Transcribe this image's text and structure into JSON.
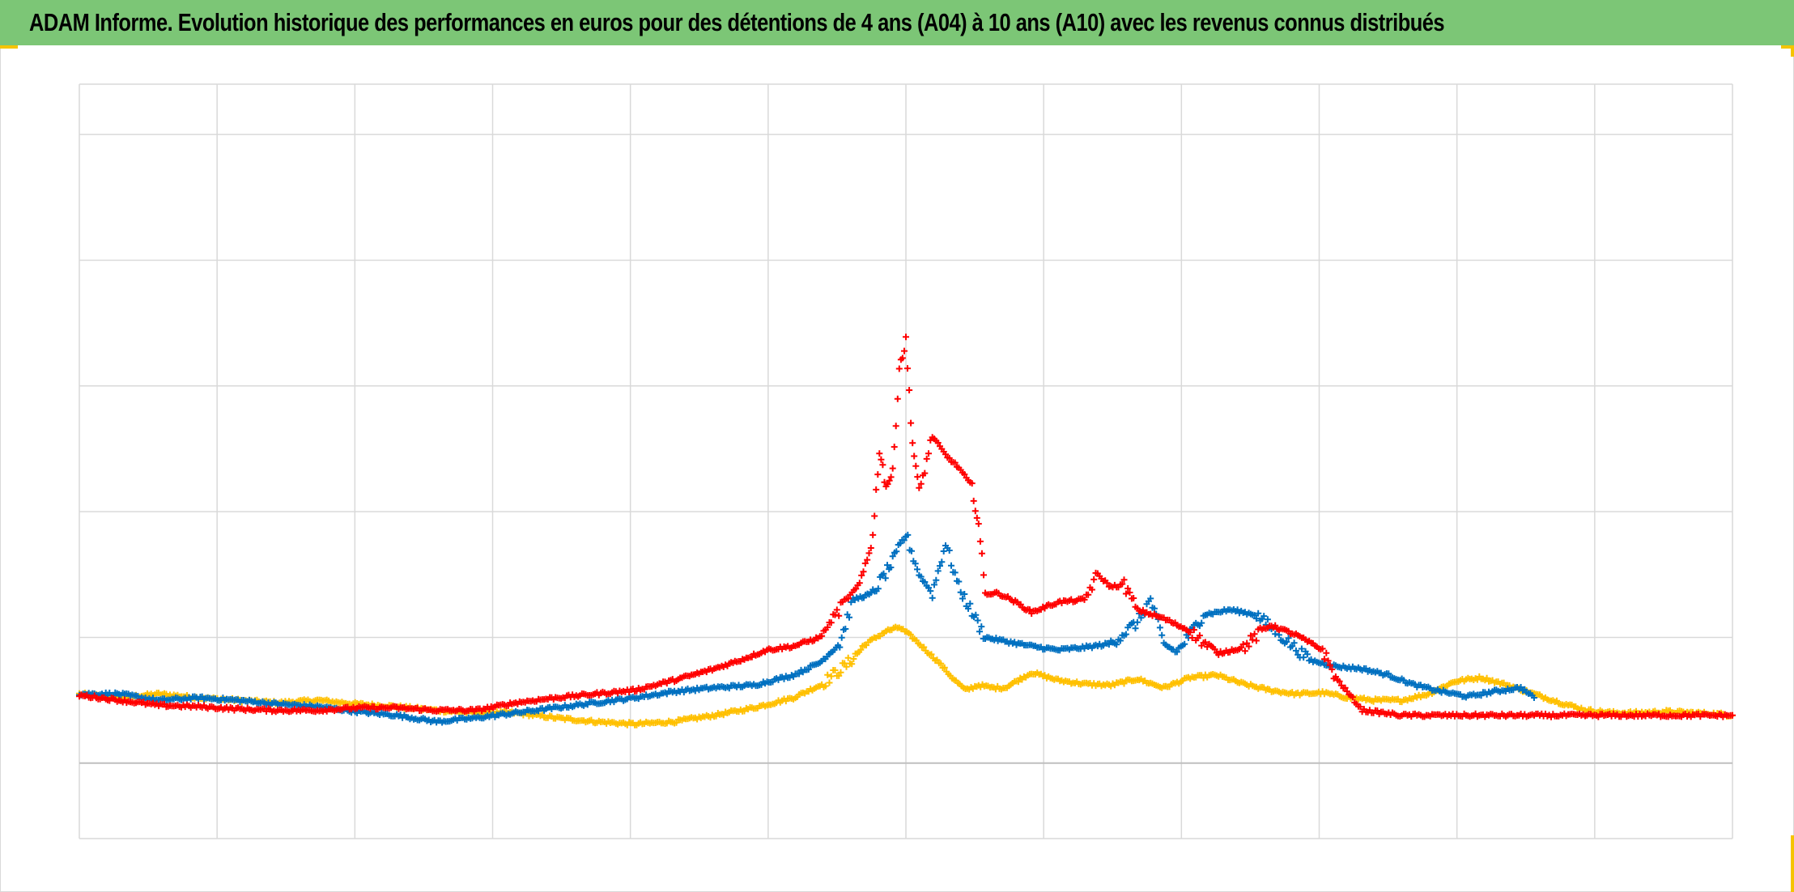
{
  "title": "ADAM Informe. Evolution historique des performances en euros pour des détentions de 4 ans (A04) à 10 ans (A10) avec les revenus connus distribués",
  "colors": {
    "header_bg": "#7cc676",
    "accent_corner": "#f5c400",
    "grid": "#d9d9d9",
    "axis": "#bfbfbf"
  },
  "chart_data": {
    "type": "scatter",
    "marker": "plus",
    "title": "ADAM Informe. Evolution historique des performances en euros pour des détentions de 4 ans (A04) à 10 ans (A10) avec les revenus connus distribués",
    "xlabel": "",
    "ylabel": "",
    "tick_labels_visible": false,
    "grid": true,
    "legend": "none",
    "xlim": [
      0,
      12.5
    ],
    "ylim": [
      -0.6,
      5.4
    ],
    "x_gridlines": 13,
    "y_gridlines": [
      5,
      4,
      3,
      2,
      1,
      0
    ],
    "zero_line": 0,
    "series": [
      {
        "color": "#ffc000",
        "points": [
          [
            0.0,
            0.55
          ],
          [
            0.3,
            0.52
          ],
          [
            0.6,
            0.55
          ],
          [
            0.9,
            0.52
          ],
          [
            1.2,
            0.5
          ],
          [
            1.5,
            0.48
          ],
          [
            1.8,
            0.5
          ],
          [
            2.1,
            0.47
          ],
          [
            2.4,
            0.45
          ],
          [
            2.7,
            0.42
          ],
          [
            3.0,
            0.4
          ],
          [
            3.3,
            0.4
          ],
          [
            3.6,
            0.36
          ],
          [
            3.9,
            0.33
          ],
          [
            4.2,
            0.31
          ],
          [
            4.5,
            0.33
          ],
          [
            4.8,
            0.38
          ],
          [
            5.1,
            0.44
          ],
          [
            5.4,
            0.52
          ],
          [
            5.6,
            0.62
          ],
          [
            5.8,
            0.78
          ],
          [
            5.95,
            0.95
          ],
          [
            6.1,
            1.05
          ],
          [
            6.2,
            1.08
          ],
          [
            6.3,
            1.0
          ],
          [
            6.4,
            0.9
          ],
          [
            6.5,
            0.8
          ],
          [
            6.6,
            0.68
          ],
          [
            6.7,
            0.58
          ],
          [
            6.8,
            0.62
          ],
          [
            6.9,
            0.6
          ],
          [
            7.0,
            0.6
          ],
          [
            7.2,
            0.72
          ],
          [
            7.4,
            0.66
          ],
          [
            7.6,
            0.63
          ],
          [
            7.8,
            0.62
          ],
          [
            8.0,
            0.67
          ],
          [
            8.2,
            0.6
          ],
          [
            8.4,
            0.68
          ],
          [
            8.6,
            0.7
          ],
          [
            8.8,
            0.63
          ],
          [
            9.0,
            0.58
          ],
          [
            9.2,
            0.55
          ],
          [
            9.4,
            0.56
          ],
          [
            9.6,
            0.52
          ],
          [
            9.8,
            0.5
          ],
          [
            10.0,
            0.5
          ],
          [
            10.2,
            0.55
          ],
          [
            10.4,
            0.65
          ],
          [
            10.6,
            0.68
          ],
          [
            10.8,
            0.62
          ],
          [
            11.0,
            0.55
          ],
          [
            11.2,
            0.48
          ],
          [
            11.4,
            0.42
          ],
          [
            11.6,
            0.4
          ],
          [
            11.8,
            0.4
          ],
          [
            12.0,
            0.41
          ],
          [
            12.2,
            0.4
          ],
          [
            12.4,
            0.39
          ],
          [
            12.5,
            0.38
          ]
        ]
      },
      {
        "color": "#0070c0",
        "points": [
          [
            0.0,
            0.55
          ],
          [
            0.3,
            0.55
          ],
          [
            0.6,
            0.5
          ],
          [
            0.9,
            0.52
          ],
          [
            1.2,
            0.5
          ],
          [
            1.5,
            0.47
          ],
          [
            1.8,
            0.45
          ],
          [
            2.1,
            0.41
          ],
          [
            2.4,
            0.38
          ],
          [
            2.7,
            0.33
          ],
          [
            3.0,
            0.36
          ],
          [
            3.3,
            0.4
          ],
          [
            3.6,
            0.44
          ],
          [
            3.9,
            0.48
          ],
          [
            4.2,
            0.52
          ],
          [
            4.5,
            0.57
          ],
          [
            4.8,
            0.6
          ],
          [
            5.1,
            0.62
          ],
          [
            5.4,
            0.7
          ],
          [
            5.6,
            0.8
          ],
          [
            5.75,
            0.95
          ],
          [
            5.85,
            1.3
          ],
          [
            6.0,
            1.35
          ],
          [
            6.15,
            1.6
          ],
          [
            6.25,
            1.82
          ],
          [
            6.35,
            1.5
          ],
          [
            6.45,
            1.35
          ],
          [
            6.55,
            1.75
          ],
          [
            6.65,
            1.4
          ],
          [
            6.75,
            1.2
          ],
          [
            6.85,
            1.0
          ],
          [
            7.0,
            0.97
          ],
          [
            7.2,
            0.93
          ],
          [
            7.4,
            0.9
          ],
          [
            7.6,
            0.92
          ],
          [
            7.8,
            0.95
          ],
          [
            8.0,
            1.12
          ],
          [
            8.1,
            1.3
          ],
          [
            8.2,
            0.95
          ],
          [
            8.3,
            0.88
          ],
          [
            8.5,
            1.18
          ],
          [
            8.7,
            1.22
          ],
          [
            8.9,
            1.18
          ],
          [
            9.1,
            1.0
          ],
          [
            9.3,
            0.82
          ],
          [
            9.5,
            0.77
          ],
          [
            9.7,
            0.75
          ],
          [
            9.9,
            0.7
          ],
          [
            10.1,
            0.62
          ],
          [
            10.3,
            0.57
          ],
          [
            10.5,
            0.53
          ],
          [
            10.7,
            0.57
          ],
          [
            10.9,
            0.6
          ],
          [
            11.0,
            0.52
          ]
        ]
      },
      {
        "color": "#ff0000",
        "points": [
          [
            0.0,
            0.54
          ],
          [
            0.3,
            0.5
          ],
          [
            0.6,
            0.46
          ],
          [
            0.9,
            0.45
          ],
          [
            1.2,
            0.43
          ],
          [
            1.5,
            0.42
          ],
          [
            1.8,
            0.42
          ],
          [
            2.1,
            0.44
          ],
          [
            2.4,
            0.44
          ],
          [
            2.7,
            0.42
          ],
          [
            3.0,
            0.42
          ],
          [
            3.3,
            0.48
          ],
          [
            3.6,
            0.52
          ],
          [
            3.9,
            0.55
          ],
          [
            4.2,
            0.58
          ],
          [
            4.5,
            0.66
          ],
          [
            4.8,
            0.75
          ],
          [
            5.0,
            0.82
          ],
          [
            5.2,
            0.9
          ],
          [
            5.4,
            0.93
          ],
          [
            5.6,
            1.0
          ],
          [
            5.7,
            1.15
          ],
          [
            5.8,
            1.3
          ],
          [
            5.9,
            1.42
          ],
          [
            6.0,
            1.8
          ],
          [
            6.05,
            2.5
          ],
          [
            6.1,
            2.2
          ],
          [
            6.15,
            2.3
          ],
          [
            6.2,
            3.15
          ],
          [
            6.25,
            3.35
          ],
          [
            6.3,
            2.55
          ],
          [
            6.35,
            2.15
          ],
          [
            6.45,
            2.6
          ],
          [
            6.55,
            2.45
          ],
          [
            6.65,
            2.35
          ],
          [
            6.75,
            2.2
          ],
          [
            6.8,
            1.9
          ],
          [
            6.85,
            1.35
          ],
          [
            6.95,
            1.35
          ],
          [
            7.05,
            1.3
          ],
          [
            7.2,
            1.2
          ],
          [
            7.4,
            1.28
          ],
          [
            7.6,
            1.3
          ],
          [
            7.7,
            1.5
          ],
          [
            7.8,
            1.4
          ],
          [
            7.9,
            1.42
          ],
          [
            8.0,
            1.22
          ],
          [
            8.2,
            1.15
          ],
          [
            8.4,
            1.05
          ],
          [
            8.6,
            0.87
          ],
          [
            8.8,
            0.92
          ],
          [
            9.0,
            1.1
          ],
          [
            9.2,
            1.02
          ],
          [
            9.4,
            0.9
          ],
          [
            9.5,
            0.68
          ],
          [
            9.6,
            0.55
          ],
          [
            9.7,
            0.42
          ],
          [
            10.0,
            0.38
          ],
          [
            10.5,
            0.38
          ],
          [
            11.0,
            0.38
          ],
          [
            11.5,
            0.38
          ],
          [
            12.0,
            0.38
          ],
          [
            12.5,
            0.38
          ]
        ]
      }
    ]
  }
}
